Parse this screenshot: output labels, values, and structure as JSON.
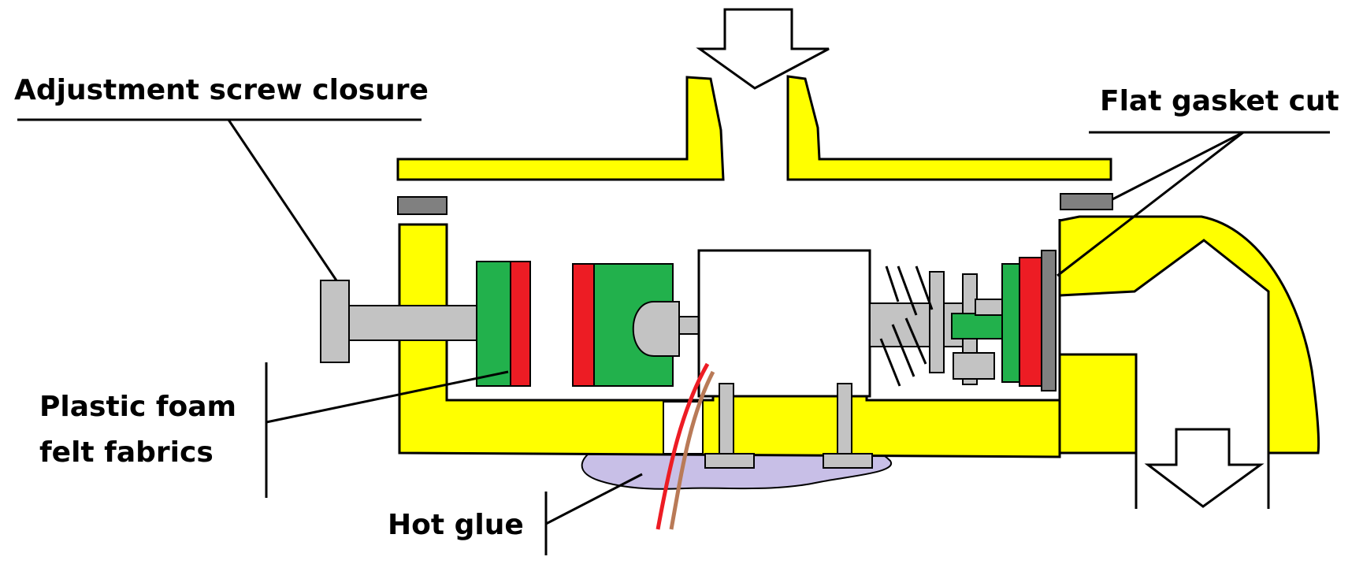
{
  "labels": {
    "adjustment_screw": "Adjustment screw closure",
    "flat_gasket": "Flat gasket cut",
    "foam_line1": "Plastic foam",
    "foam_line2": "felt fabrics",
    "hot_glue": "Hot glue"
  },
  "colors": {
    "housing": "#FFFF00",
    "gasket": "#808080",
    "screw": "#C3C3C3",
    "foam": "#22B14C",
    "felt": "#ED1C24",
    "glue": "#C8BFE7",
    "wire_red": "#ED1C24",
    "wire_brown": "#B97A57",
    "outline": "#000000"
  }
}
